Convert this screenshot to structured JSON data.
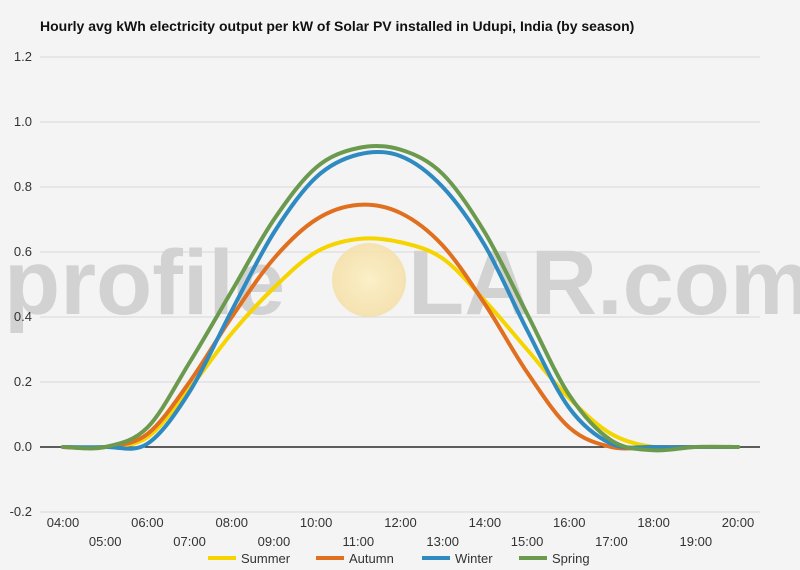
{
  "chart_data": {
    "type": "line",
    "title": "Hourly avg kWh electricity output per kW of Solar PV installed in Udupi, India (by season)",
    "xlabel": "",
    "ylabel": "",
    "x": [
      "04:00",
      "05:00",
      "06:00",
      "07:00",
      "08:00",
      "09:00",
      "10:00",
      "11:00",
      "12:00",
      "13:00",
      "14:00",
      "15:00",
      "16:00",
      "17:00",
      "18:00",
      "19:00",
      "20:00"
    ],
    "ylim": [
      -0.2,
      1.2
    ],
    "yticks": [
      "-0.2",
      "0.0",
      "0.2",
      "0.4",
      "0.6",
      "0.8",
      "1.0",
      "1.2"
    ],
    "grid": true,
    "legend_position": "bottom",
    "series": [
      {
        "name": "Summer",
        "color": "#f5d400",
        "values": [
          0.0,
          0.0,
          0.03,
          0.18,
          0.35,
          0.49,
          0.6,
          0.64,
          0.63,
          0.58,
          0.45,
          0.3,
          0.15,
          0.04,
          0.0,
          0.0,
          0.0
        ]
      },
      {
        "name": "Autumn",
        "color": "#e07020",
        "values": [
          0.0,
          0.0,
          0.04,
          0.2,
          0.4,
          0.58,
          0.7,
          0.745,
          0.72,
          0.62,
          0.44,
          0.23,
          0.06,
          0.0,
          0.0,
          0.0,
          0.0
        ]
      },
      {
        "name": "Winter",
        "color": "#2e8ac0",
        "values": [
          0.0,
          0.0,
          0.01,
          0.17,
          0.42,
          0.66,
          0.83,
          0.9,
          0.895,
          0.8,
          0.62,
          0.36,
          0.12,
          0.01,
          0.0,
          0.0,
          0.0
        ]
      },
      {
        "name": "Spring",
        "color": "#6b9a4e",
        "values": [
          0.0,
          0.0,
          0.06,
          0.26,
          0.48,
          0.7,
          0.86,
          0.92,
          0.915,
          0.84,
          0.66,
          0.41,
          0.16,
          0.02,
          -0.01,
          0.0,
          0.0
        ]
      }
    ]
  },
  "watermark": {
    "left_text": "profile",
    "right_text": "LAR.com"
  },
  "colors": {
    "background": "#f4f4f4",
    "grid": "#d8d8d8",
    "zero_line": "#000000",
    "watermark_text": "#d2d2d2",
    "watermark_sun": "#f7e7b8"
  }
}
